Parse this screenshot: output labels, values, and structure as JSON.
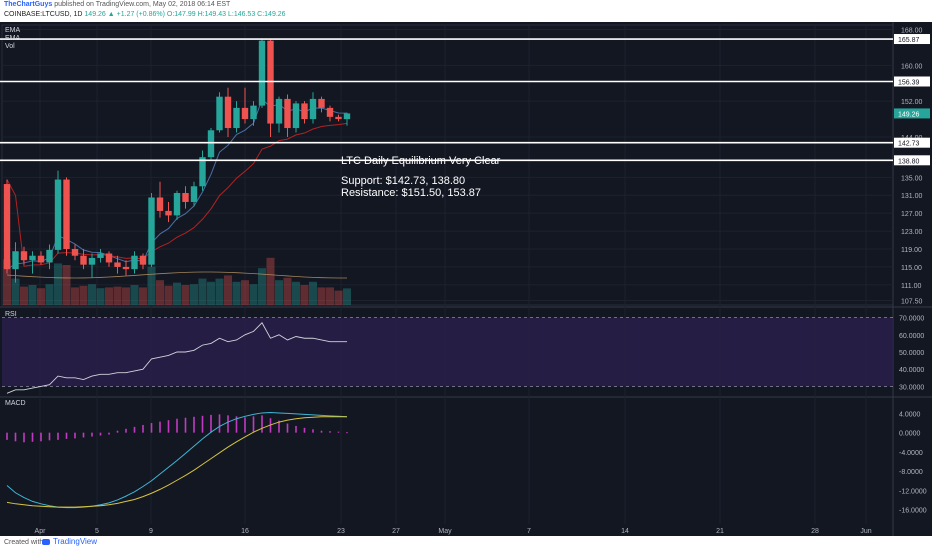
{
  "header": {
    "author": "TheChartGuys",
    "published_text": "published on TradingView.com, May 02, 2018 06:14 EST",
    "symbol": "COINBASE:LTCUSD, 1D",
    "last": "149.26",
    "change": "▲ +1.27 (+0.86%)",
    "ohlc": "O:147.99 H:149.43 L:146.53 C:149.26"
  },
  "footer": {
    "created_with": "Created with",
    "brand": "TradingView"
  },
  "labels": {
    "ema1": "EMA",
    "ema2": "EMA",
    "vol": "Vol",
    "rsi": "RSI",
    "macd": "MACD"
  },
  "annotation": {
    "title": "LTC Daily Equilibrium Very Clear",
    "support": "Support: $142.73, 138.80",
    "resistance": "Resistance: $151.50, 153.87"
  },
  "colors": {
    "up": "#26a69a",
    "down": "#ef5350",
    "bg": "#131722",
    "rsi_band": "#2a1e4a"
  },
  "chart_data": {
    "type": "candlestick",
    "x_ticks": [
      "Apr",
      "5",
      "9",
      "16",
      "23",
      "27",
      "May",
      "7",
      "14",
      "21",
      "28",
      "Jun"
    ],
    "price_ticks": [
      "168.00",
      "160.00",
      "152.00",
      "144.00",
      "135.00",
      "131.00",
      "127.00",
      "123.00",
      "119.00",
      "115.00",
      "111.00",
      "107.50"
    ],
    "price_range": [
      106.5,
      169
    ],
    "horizontal_levels": [
      {
        "value": 165.87,
        "label": "165.87"
      },
      {
        "value": 156.39,
        "label": "156.39"
      },
      {
        "value": 142.73,
        "label": "142.73"
      },
      {
        "value": 138.8,
        "label": "138.80"
      }
    ],
    "last_price": {
      "value": 149.26,
      "label": "149.26"
    },
    "candles": [
      {
        "o": 133.5,
        "h": 134.5,
        "l": 113.5,
        "c": 114.5
      },
      {
        "o": 114.5,
        "h": 120.5,
        "l": 111.5,
        "c": 118.5
      },
      {
        "o": 118.5,
        "h": 119.5,
        "l": 115.5,
        "c": 116.5
      },
      {
        "o": 116.5,
        "h": 118.5,
        "l": 113.5,
        "c": 117.5
      },
      {
        "o": 117.5,
        "h": 118.5,
        "l": 115.5,
        "c": 116.0
      },
      {
        "o": 116.0,
        "h": 120.0,
        "l": 114.5,
        "c": 118.8
      },
      {
        "o": 118.8,
        "h": 136.5,
        "l": 118.0,
        "c": 134.5
      },
      {
        "o": 134.5,
        "h": 135.0,
        "l": 117.5,
        "c": 119.0
      },
      {
        "o": 119.0,
        "h": 120.0,
        "l": 116.5,
        "c": 117.5
      },
      {
        "o": 117.5,
        "h": 119.0,
        "l": 114.5,
        "c": 115.5
      },
      {
        "o": 115.5,
        "h": 118.0,
        "l": 112.5,
        "c": 117.0
      },
      {
        "o": 117.0,
        "h": 119.0,
        "l": 116.0,
        "c": 118.0
      },
      {
        "o": 118.0,
        "h": 118.5,
        "l": 115.0,
        "c": 116.0
      },
      {
        "o": 116.0,
        "h": 117.5,
        "l": 113.5,
        "c": 115.0
      },
      {
        "o": 115.0,
        "h": 116.5,
        "l": 113.0,
        "c": 114.5
      },
      {
        "o": 114.5,
        "h": 118.5,
        "l": 113.5,
        "c": 117.5
      },
      {
        "o": 117.5,
        "h": 118.0,
        "l": 114.5,
        "c": 115.5
      },
      {
        "o": 115.5,
        "h": 131.5,
        "l": 115.0,
        "c": 130.5
      },
      {
        "o": 130.5,
        "h": 134.0,
        "l": 126.0,
        "c": 127.5
      },
      {
        "o": 127.5,
        "h": 129.5,
        "l": 125.0,
        "c": 126.5
      },
      {
        "o": 126.5,
        "h": 132.0,
        "l": 125.5,
        "c": 131.5
      },
      {
        "o": 131.5,
        "h": 133.0,
        "l": 128.0,
        "c": 129.5
      },
      {
        "o": 129.5,
        "h": 134.0,
        "l": 128.5,
        "c": 133.0
      },
      {
        "o": 133.0,
        "h": 141.0,
        "l": 132.0,
        "c": 139.5
      },
      {
        "o": 139.5,
        "h": 146.0,
        "l": 139.0,
        "c": 145.5
      },
      {
        "o": 145.5,
        "h": 154.0,
        "l": 145.0,
        "c": 153.0
      },
      {
        "o": 153.0,
        "h": 155.0,
        "l": 144.0,
        "c": 146.0
      },
      {
        "o": 146.0,
        "h": 152.0,
        "l": 145.0,
        "c": 150.5
      },
      {
        "o": 150.5,
        "h": 155.0,
        "l": 147.0,
        "c": 148.0
      },
      {
        "o": 148.0,
        "h": 152.0,
        "l": 146.5,
        "c": 151.0
      },
      {
        "o": 151.0,
        "h": 166.0,
        "l": 150.5,
        "c": 165.5
      },
      {
        "o": 165.5,
        "h": 166.0,
        "l": 144.0,
        "c": 147.0
      },
      {
        "o": 147.0,
        "h": 153.0,
        "l": 145.0,
        "c": 152.5
      },
      {
        "o": 152.5,
        "h": 153.5,
        "l": 144.0,
        "c": 146.0
      },
      {
        "o": 146.0,
        "h": 152.0,
        "l": 145.0,
        "c": 151.5
      },
      {
        "o": 151.5,
        "h": 152.0,
        "l": 147.0,
        "c": 148.0
      },
      {
        "o": 148.0,
        "h": 154.0,
        "l": 147.0,
        "c": 152.5
      },
      {
        "o": 152.5,
        "h": 153.0,
        "l": 149.5,
        "c": 150.5
      },
      {
        "o": 150.5,
        "h": 151.0,
        "l": 147.5,
        "c": 148.5
      },
      {
        "o": 148.5,
        "h": 149.0,
        "l": 147.5,
        "c": 148.0
      },
      {
        "o": 147.99,
        "h": 149.43,
        "l": 146.53,
        "c": 149.26
      }
    ],
    "rsi": {
      "ticks": [
        "70.0000",
        "60.0000",
        "50.0000",
        "40.0000",
        "30.0000"
      ],
      "range": [
        25,
        75
      ],
      "values": [
        26,
        28,
        28,
        29,
        30,
        31,
        36,
        35,
        35,
        34,
        36,
        37,
        37,
        38,
        38,
        39,
        40,
        46,
        47,
        48,
        50,
        50,
        51,
        54,
        55,
        58,
        56,
        57,
        60,
        62,
        67,
        58,
        60,
        57,
        59,
        58,
        58,
        57,
        56,
        56,
        56
      ]
    },
    "macd": {
      "ticks": [
        "4.0000",
        "0.0000",
        "-4.0000",
        "-8.0000",
        "-12.0000",
        "-16.0000"
      ],
      "range": [
        -19,
        7
      ],
      "macd_line": [
        -11.0,
        -12.5,
        -13.5,
        -14.3,
        -14.8,
        -15.2,
        -15.5,
        -15.6,
        -15.6,
        -15.5,
        -15.3,
        -15.0,
        -14.6,
        -14.0,
        -13.2,
        -12.3,
        -11.2,
        -10.0,
        -8.6,
        -7.2,
        -5.8,
        -4.3,
        -2.8,
        -1.3,
        0.1,
        1.3,
        2.2,
        2.9,
        3.4,
        3.8,
        4.1,
        4.2,
        4.1,
        4.0,
        3.9,
        3.8,
        3.7,
        3.6,
        3.5,
        3.4,
        3.3
      ],
      "signal_line": [
        -14.5,
        -14.8,
        -15.0,
        -15.2,
        -15.3,
        -15.4,
        -15.5,
        -15.5,
        -15.5,
        -15.4,
        -15.3,
        -15.2,
        -15.0,
        -14.7,
        -14.3,
        -13.9,
        -13.3,
        -12.6,
        -11.8,
        -10.9,
        -9.9,
        -8.9,
        -7.8,
        -6.6,
        -5.4,
        -4.2,
        -3.0,
        -1.9,
        -0.9,
        0.1,
        0.9,
        1.6,
        2.2,
        2.6,
        2.9,
        3.1,
        3.2,
        3.3,
        3.3,
        3.3,
        3.3
      ],
      "histogram": [
        -1.5,
        -1.8,
        -2.0,
        -1.9,
        -1.8,
        -1.6,
        -1.5,
        -1.3,
        -1.2,
        -1.0,
        -0.8,
        -0.6,
        -0.4,
        0.4,
        0.8,
        1.2,
        1.6,
        2.0,
        2.3,
        2.6,
        2.9,
        3.1,
        3.3,
        3.5,
        3.7,
        3.8,
        3.6,
        3.4,
        3.2,
        3.4,
        3.6,
        3.0,
        2.5,
        1.9,
        1.4,
        1.0,
        0.7,
        0.4,
        0.3,
        0.2,
        0.1
      ]
    }
  }
}
